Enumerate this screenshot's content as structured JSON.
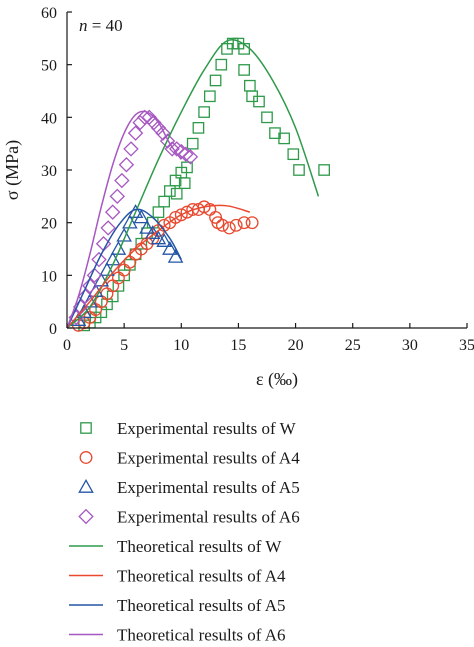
{
  "chart_data": {
    "type": "scatter",
    "title": "",
    "annotation": {
      "prefix": "n",
      "text": " = 40"
    },
    "xlabel": "ε (‰)",
    "ylabel": "σ (MPa)",
    "xlim": [
      0,
      35
    ],
    "ylim": [
      0,
      60
    ],
    "x_ticks": [
      0,
      5,
      10,
      15,
      20,
      25,
      30,
      35
    ],
    "x_tick_labels": [
      "0",
      "5",
      "10",
      "15",
      "20",
      "25",
      "30",
      "35"
    ],
    "y_ticks": [
      0,
      10,
      20,
      30,
      40,
      50,
      60
    ],
    "y_tick_labels": [
      "0",
      "10",
      "20",
      "30",
      "40",
      "50",
      "60"
    ],
    "grid": false,
    "legend_position": "bottom",
    "series": [
      {
        "name": "Experimental results of W",
        "kind": "marker",
        "marker": "square",
        "color": "#2e9a4a",
        "points": [
          [
            1.5,
            0.5
          ],
          [
            2,
            1
          ],
          [
            2.5,
            2
          ],
          [
            3,
            3
          ],
          [
            3.5,
            4.5
          ],
          [
            4,
            6
          ],
          [
            4.5,
            8
          ],
          [
            5,
            10
          ],
          [
            5.5,
            12
          ],
          [
            6,
            14
          ],
          [
            6.5,
            16
          ],
          [
            7,
            18
          ],
          [
            7.5,
            20
          ],
          [
            8,
            22
          ],
          [
            8.5,
            24
          ],
          [
            9,
            26
          ],
          [
            9.5,
            28
          ],
          [
            10,
            29.5
          ],
          [
            10.5,
            30.5
          ],
          [
            9.6,
            25.5
          ],
          [
            10.3,
            27.5
          ],
          [
            11,
            35
          ],
          [
            11.5,
            38
          ],
          [
            12,
            41
          ],
          [
            12.5,
            44
          ],
          [
            13,
            47
          ],
          [
            13.5,
            50
          ],
          [
            14,
            53
          ],
          [
            14.5,
            54
          ],
          [
            15,
            54
          ],
          [
            15.5,
            53
          ],
          [
            15.5,
            49
          ],
          [
            16,
            46
          ],
          [
            16.2,
            44
          ],
          [
            16.8,
            43
          ],
          [
            17.5,
            40
          ],
          [
            18.2,
            37
          ],
          [
            19,
            36
          ],
          [
            19.8,
            33
          ],
          [
            20.3,
            30
          ],
          [
            22.5,
            30
          ]
        ]
      },
      {
        "name": "Experimental results of A4",
        "kind": "marker",
        "marker": "circle",
        "color": "#e8492f",
        "points": [
          [
            1,
            0.5
          ],
          [
            1.5,
            1
          ],
          [
            2,
            2
          ],
          [
            2.5,
            3.5
          ],
          [
            3,
            5
          ],
          [
            3.5,
            6.5
          ],
          [
            4,
            8
          ],
          [
            4.5,
            9.5
          ],
          [
            5,
            11
          ],
          [
            5.5,
            12.5
          ],
          [
            6,
            14
          ],
          [
            6.5,
            15
          ],
          [
            7,
            16
          ],
          [
            7.5,
            17
          ],
          [
            8,
            18.5
          ],
          [
            8.5,
            19.5
          ],
          [
            9,
            20
          ],
          [
            9.5,
            21
          ],
          [
            10,
            21.5
          ],
          [
            10.5,
            22
          ],
          [
            11,
            22.5
          ],
          [
            11.5,
            22.5
          ],
          [
            12,
            23
          ],
          [
            12.5,
            22.5
          ],
          [
            13,
            21
          ],
          [
            13.2,
            20
          ],
          [
            13.6,
            19.5
          ],
          [
            14.2,
            19
          ],
          [
            14.8,
            19.5
          ],
          [
            15.5,
            20
          ],
          [
            16.2,
            20
          ]
        ]
      },
      {
        "name": "Experimental results of A5",
        "kind": "marker",
        "marker": "triangle",
        "color": "#2456a6",
        "points": [
          [
            1,
            1.5
          ],
          [
            1.5,
            3
          ],
          [
            2,
            5
          ],
          [
            2.5,
            7
          ],
          [
            3,
            9
          ],
          [
            3.5,
            11
          ],
          [
            4,
            13
          ],
          [
            4.5,
            15
          ],
          [
            5,
            17.5
          ],
          [
            5.5,
            20
          ],
          [
            6,
            22
          ],
          [
            6.5,
            21
          ],
          [
            7,
            19
          ],
          [
            7.5,
            18
          ],
          [
            8,
            17
          ],
          [
            8.5,
            16.5
          ],
          [
            9,
            15
          ],
          [
            9.5,
            13.5
          ]
        ]
      },
      {
        "name": "Experimental results of A6",
        "kind": "marker",
        "marker": "diamond",
        "color": "#a757c2",
        "points": [
          [
            0.8,
            2
          ],
          [
            1.2,
            4
          ],
          [
            1.6,
            6
          ],
          [
            2,
            8
          ],
          [
            2.4,
            10
          ],
          [
            2.8,
            13
          ],
          [
            3.2,
            16
          ],
          [
            3.6,
            19
          ],
          [
            4,
            22
          ],
          [
            4.4,
            25
          ],
          [
            4.8,
            28
          ],
          [
            5.2,
            31
          ],
          [
            5.6,
            34
          ],
          [
            6,
            37
          ],
          [
            6.4,
            39
          ],
          [
            6.8,
            40
          ],
          [
            7.2,
            40
          ],
          [
            7.6,
            39
          ],
          [
            8,
            38
          ],
          [
            8.4,
            37
          ],
          [
            8.8,
            35.5
          ],
          [
            9.2,
            34
          ],
          [
            9.6,
            34
          ],
          [
            10,
            33.5
          ],
          [
            10.4,
            33
          ],
          [
            10.8,
            32.5
          ]
        ]
      },
      {
        "name": "Theoretical results of W",
        "kind": "line",
        "color": "#2e9a4a",
        "points": [
          [
            0,
            0
          ],
          [
            2,
            4
          ],
          [
            4,
            12
          ],
          [
            6,
            22
          ],
          [
            8,
            32
          ],
          [
            10,
            41
          ],
          [
            12,
            49
          ],
          [
            14,
            54.5
          ],
          [
            16,
            53
          ],
          [
            18,
            47
          ],
          [
            20,
            38
          ],
          [
            22,
            25
          ]
        ]
      },
      {
        "name": "Theoretical results of A4",
        "kind": "line",
        "color": "#e8492f",
        "points": [
          [
            0,
            0
          ],
          [
            2,
            5
          ],
          [
            4,
            10.5
          ],
          [
            6,
            15
          ],
          [
            8,
            18.5
          ],
          [
            10,
            21.5
          ],
          [
            12,
            23
          ],
          [
            14,
            23.2
          ],
          [
            16,
            22
          ]
        ]
      },
      {
        "name": "Theoretical results of A5",
        "kind": "line",
        "color": "#2456a6",
        "points": [
          [
            0,
            0
          ],
          [
            1.5,
            7
          ],
          [
            3,
            14
          ],
          [
            4.5,
            19.5
          ],
          [
            6,
            22.5
          ],
          [
            7.5,
            21
          ],
          [
            9,
            17
          ],
          [
            10,
            13
          ]
        ]
      },
      {
        "name": "Theoretical results of A6",
        "kind": "line",
        "color": "#a757c2",
        "points": [
          [
            0,
            0
          ],
          [
            1,
            6
          ],
          [
            2,
            14
          ],
          [
            3,
            23
          ],
          [
            4,
            31
          ],
          [
            5,
            37
          ],
          [
            6,
            40.5
          ],
          [
            7,
            41
          ],
          [
            8,
            39
          ],
          [
            9,
            35
          ],
          [
            10,
            32
          ]
        ]
      }
    ]
  }
}
